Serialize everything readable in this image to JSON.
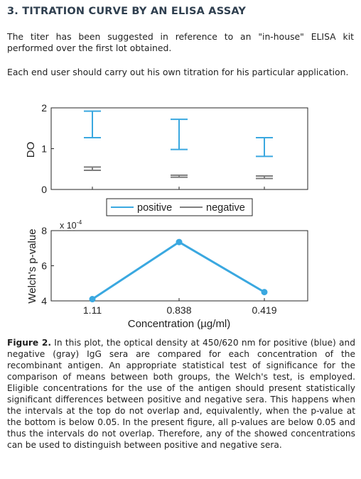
{
  "section": {
    "heading": "3. TITRATION CURVE BY AN ELISA ASSAY"
  },
  "paragraphs": [
    "The titer has been suggested in reference to an \"in-house\" ELISA kit performed over the first lot obtained.",
    "Each end user should carry out his own titration for his particular application."
  ],
  "colors": {
    "positive": "#3aa8e0",
    "negative": "#7f7f7f",
    "text": "#1f1f1f",
    "heading": "#2f3f4f"
  },
  "chart_data": [
    {
      "type": "errorbar",
      "ylabel": "DO",
      "ylim": [
        0,
        2
      ],
      "yticks": [
        0,
        1,
        2
      ],
      "categories": [
        "1.11",
        "0.838",
        "0.419"
      ],
      "series": [
        {
          "name": "positive",
          "color": "#3aa8e0",
          "low": [
            1.27,
            0.98,
            0.81
          ],
          "high": [
            1.92,
            1.72,
            1.27
          ]
        },
        {
          "name": "negative",
          "color": "#7f7f7f",
          "low": [
            0.47,
            0.3,
            0.27
          ],
          "high": [
            0.55,
            0.35,
            0.33
          ]
        }
      ],
      "legend": {
        "placement": "bottom-center",
        "entries": [
          "positive",
          "negative"
        ]
      }
    },
    {
      "type": "line",
      "ylabel": "Welch's p-value",
      "xlabel": "Concentration (µg/ml)",
      "exponent_label": "x 10",
      "exponent_power": "-4",
      "ylim": [
        4,
        8
      ],
      "yticks": [
        4,
        6,
        8
      ],
      "categories": [
        "1.11",
        "0.838",
        "0.419"
      ],
      "series": [
        {
          "color": "#3aa8e0",
          "values": [
            4.1,
            7.35,
            4.5
          ]
        }
      ]
    }
  ],
  "caption": {
    "label": "Figure 2.",
    "text": " In this plot, the optical density at 450/620 nm for positive (blue) and negative (gray) IgG sera are compared for each concentration of the recombinant antigen. An appropriate statistical test of significance for the comparison of means between both groups, the Welch's test, is employed. Eligible concentrations for the use of the antigen should present statistically significant differences between positive and negative sera. This happens when the intervals at the top do not overlap and, equivalently, when the p-value at the bottom is below 0.05. In the present figure, all p-values are below 0.05 and thus the intervals do not overlap. Therefore, any of the showed concentrations can be used to distinguish between positive and negative sera."
  }
}
